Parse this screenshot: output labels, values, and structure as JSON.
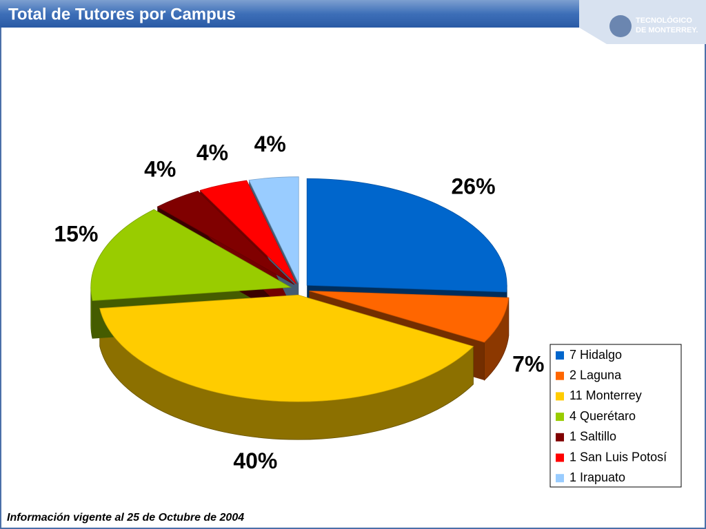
{
  "chart_data": {
    "type": "pie3d",
    "title": "Total de Tutores por Campus",
    "series": [
      {
        "name": "7  Hidalgo",
        "color": "#0066cc",
        "values": [
          26
        ],
        "value_labels": [
          "26%"
        ]
      },
      {
        "name": "2  Laguna",
        "color": "#ff6600",
        "values": [
          7
        ],
        "value_labels": [
          "7%"
        ]
      },
      {
        "name": "11 Monterrey",
        "color": "#ffcc00",
        "values": [
          40
        ],
        "value_labels": [
          "40%"
        ]
      },
      {
        "name": "4 Querétaro",
        "color": "#99cc00",
        "values": [
          15
        ],
        "value_labels": [
          "15%"
        ]
      },
      {
        "name": "1 Saltillo",
        "color": "#800000",
        "values": [
          4
        ],
        "value_labels": [
          "4%"
        ]
      },
      {
        "name": "1 San Luis Potosí",
        "color": "#ff0000",
        "values": [
          4
        ],
        "value_labels": [
          "4%"
        ]
      },
      {
        "name": "1 Irapuato",
        "color": "#99ccff",
        "values": [
          4
        ],
        "value_labels": [
          "4%"
        ]
      }
    ],
    "legend": "lower right"
  },
  "footer": "Información vigente al 25 de Octubre de 2004",
  "logo": {
    "line1": "TECNOLÓGICO",
    "line2": "DE MONTERREY."
  }
}
